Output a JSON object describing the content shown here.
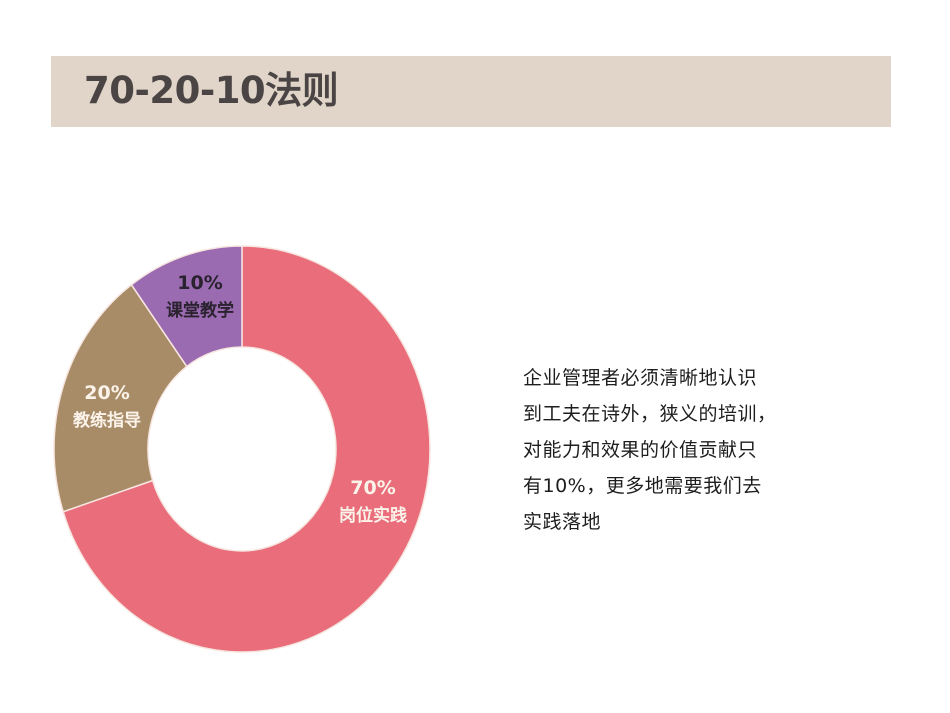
{
  "header": {
    "title": "70-20-10法则",
    "background_color": "#e0d5c8",
    "text_color": "#4a4445"
  },
  "chart_data": {
    "type": "pie",
    "variant": "donut",
    "title": "70-20-10法则",
    "start_angle_deg": 0,
    "direction": "clockwise",
    "categories": [
      "岗位实践",
      "教练指导",
      "课堂教学"
    ],
    "values": [
      70,
      20,
      10
    ],
    "unit": "%",
    "colors": [
      "#e96d7a",
      "#a88c68",
      "#9a6bb0"
    ],
    "labels": [
      {
        "percent": "70%",
        "name": "岗位实践",
        "color": "#fbf3ea"
      },
      {
        "percent": "20%",
        "name": "教练指导",
        "color": "#fbf3ea"
      },
      {
        "percent": "10%",
        "name": "课堂教学",
        "color": "#2b2230"
      }
    ],
    "legend": "none (inline labels)"
  },
  "description": {
    "lines": [
      "企业管理者必须清晰地认识",
      "到工夫在诗外，狭义的培训，",
      "对能力和效果的价值贡献只",
      "有10%，更多地需要我们去",
      "实践落地"
    ]
  }
}
